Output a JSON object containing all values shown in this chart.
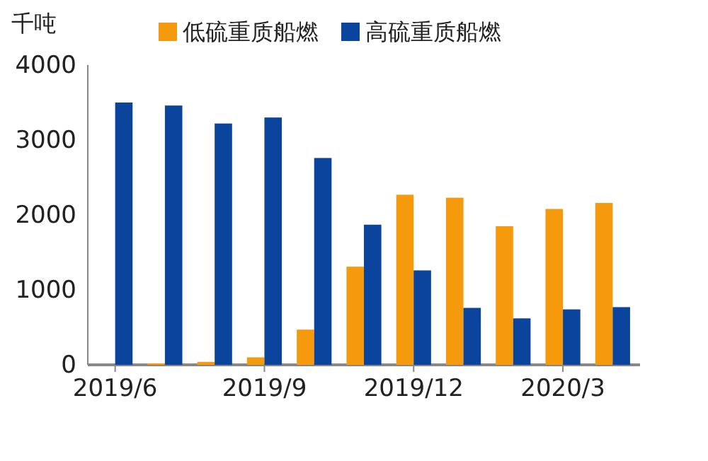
{
  "chart_data": {
    "type": "bar",
    "ylabel": "千吨",
    "categories": [
      "2019/6",
      null,
      null,
      "2019/9",
      null,
      null,
      "2019/12",
      null,
      null,
      "2020/3",
      null
    ],
    "series": [
      {
        "name": "低硫重质船燃",
        "color": "#f59a0c",
        "values": [
          0,
          20,
          40,
          100,
          470,
          1310,
          2270,
          2230,
          1850,
          2080,
          2160
        ]
      },
      {
        "name": "高硫重质船燃",
        "color": "#0a449c",
        "values": [
          3500,
          3460,
          3220,
          3300,
          2760,
          1870,
          1260,
          760,
          620,
          740,
          770
        ]
      }
    ],
    "ylim": [
      0,
      4000
    ],
    "yticks": [
      0,
      1000,
      2000,
      3000,
      4000
    ],
    "grid": false,
    "legend": "top"
  }
}
